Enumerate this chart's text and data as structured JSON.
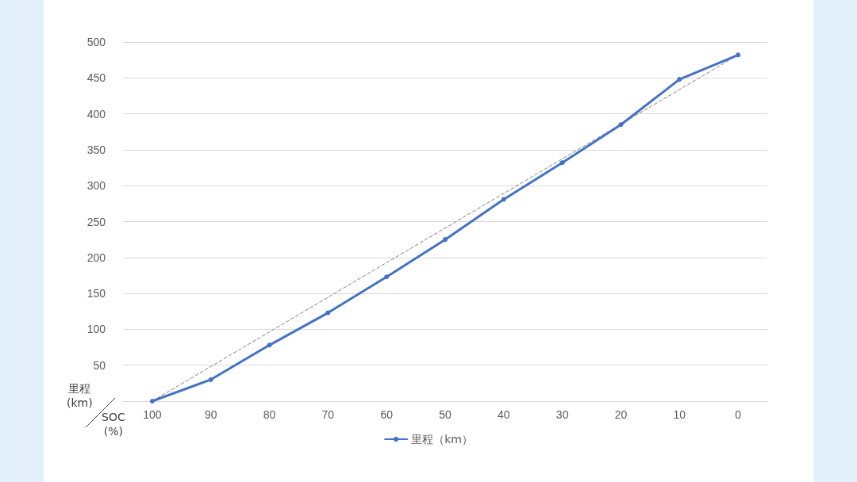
{
  "chart_data": {
    "type": "line",
    "xlabel": "SOC\n(%)",
    "ylabel": "里程\n(km)",
    "categories": [
      "100",
      "90",
      "80",
      "70",
      "60",
      "50",
      "40",
      "30",
      "20",
      "10",
      "0"
    ],
    "series": [
      {
        "name": "里程（km）",
        "color": "#4472c4",
        "values": [
          0,
          30,
          78,
          123,
          173,
          225,
          281,
          332,
          385,
          448,
          482
        ]
      },
      {
        "type": "line",
        "x": [
          "100",
          "0"
        ],
        "values": [
          0,
          482
        ],
        "color": "#7f7f7f",
        "line_style": "dashed",
        "marker": "none"
      }
    ],
    "ylim": [
      0,
      500
    ],
    "yticks": [
      {
        "value": 0,
        "label": null
      },
      50,
      100,
      150,
      200,
      250,
      300,
      350,
      400,
      450,
      500
    ],
    "grid": "y",
    "legend": "bottom",
    "marker": "circle",
    "line_style": "solid"
  }
}
